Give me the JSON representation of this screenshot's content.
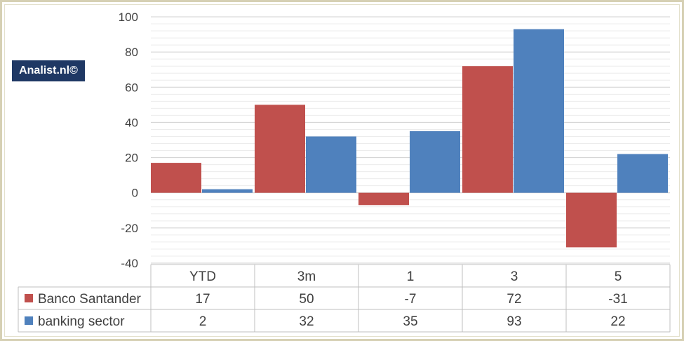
{
  "watermark": "Analist.nl©",
  "colors": {
    "banco": "#c0504d",
    "sector": "#4f81bd",
    "grid": "#d9d9d9",
    "text": "#404040"
  },
  "chart_data": {
    "type": "bar",
    "categories": [
      "YTD",
      "3m",
      "1",
      "3",
      "5"
    ],
    "series": [
      {
        "name": "Banco Santander",
        "values": [
          17,
          50,
          -7,
          72,
          -31
        ]
      },
      {
        "name": "banking sector",
        "values": [
          2,
          32,
          35,
          93,
          22
        ]
      }
    ],
    "ylim": [
      -40,
      100
    ],
    "yticks": [
      100,
      80,
      60,
      40,
      20,
      0,
      -20,
      -40
    ],
    "grid": true,
    "legend": "data-table"
  }
}
